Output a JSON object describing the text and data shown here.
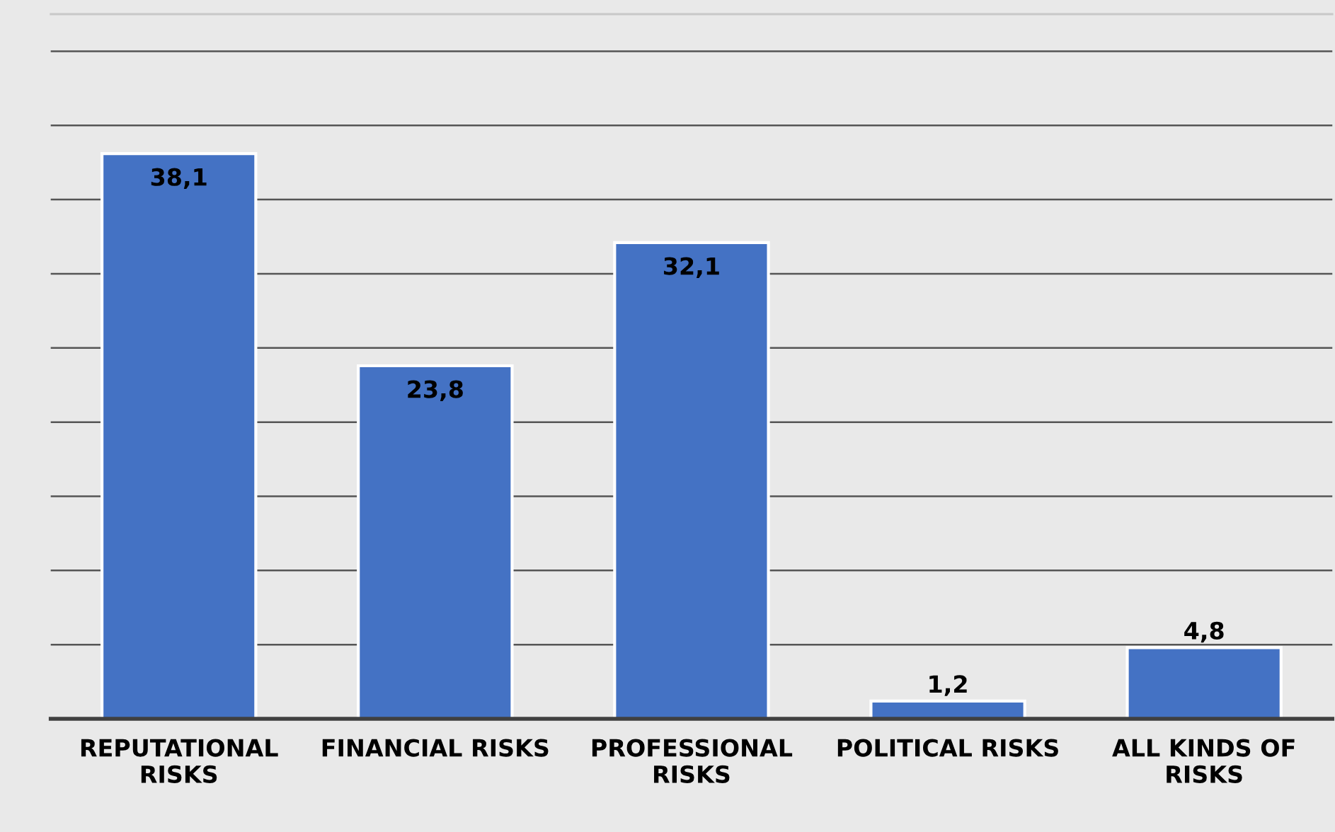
{
  "chart_data": {
    "type": "bar",
    "categories": [
      "REPUTATIONAL\nRISKS",
      "FINANCIAL RISKS",
      "PROFESSIONAL\nRISKS",
      "POLITICAL RISKS",
      "ALL KINDS OF\nRISKS"
    ],
    "values": [
      38.1,
      23.8,
      32.1,
      1.2,
      4.8
    ],
    "value_labels": [
      "38,1",
      "23,8",
      "32,1",
      "1,2",
      "4,8"
    ],
    "color": "#4472c4",
    "ylim": [
      0,
      47.5
    ],
    "yticks": [
      {
        "value": 0,
        "label": null
      },
      {
        "value": 5,
        "label": null
      },
      {
        "value": 10,
        "label": null
      },
      {
        "value": 15,
        "label": null
      },
      {
        "value": 20,
        "label": null
      },
      {
        "value": 25,
        "label": null
      },
      {
        "value": 30,
        "label": null
      },
      {
        "value": 35,
        "label": null
      },
      {
        "value": 40,
        "label": null
      },
      {
        "value": 45,
        "label": null
      }
    ],
    "grid": "y",
    "tick_labels": "x"
  }
}
